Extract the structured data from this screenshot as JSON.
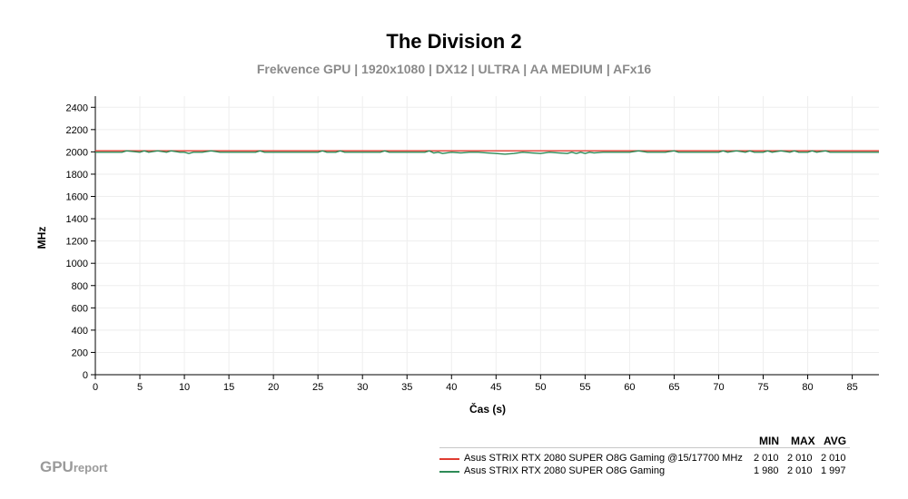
{
  "chart_data": {
    "type": "line",
    "title": "The Division 2",
    "subtitle": "Frekvence GPU | 1920x1080 | DX12 | ULTRA | AA MEDIUM | AFx16",
    "xlabel": "Čas (s)",
    "ylabel": "MHz",
    "xlim": [
      0,
      88
    ],
    "ylim": [
      0,
      2500
    ],
    "xticks": [
      0,
      5,
      10,
      15,
      20,
      25,
      30,
      35,
      40,
      45,
      50,
      55,
      60,
      65,
      70,
      75,
      80,
      85
    ],
    "yticks": [
      0,
      200,
      400,
      600,
      800,
      1000,
      1200,
      1400,
      1600,
      1800,
      2000,
      2200,
      2400
    ],
    "grid": true,
    "series": [
      {
        "name": "Asus STRIX RTX 2080 SUPER O8G Gaming @15/17700 MHz",
        "color": "#e03c31",
        "x": [
          0,
          88
        ],
        "y": [
          2010,
          2010
        ],
        "min": "2 010",
        "max": "2 010",
        "avg": "2 010"
      },
      {
        "name": "Asus STRIX RTX 2080 SUPER O8G Gaming",
        "color": "#2e8b57",
        "x": [
          0,
          3,
          3.5,
          5,
          5.5,
          6,
          7,
          8,
          8.5,
          9.5,
          10,
          10.5,
          11,
          12,
          13,
          14,
          18,
          18.5,
          19,
          20,
          25,
          25.5,
          26,
          27,
          27.5,
          28,
          32,
          32.5,
          33,
          37,
          37.5,
          38,
          38.5,
          39,
          40,
          41,
          42,
          43,
          44,
          45,
          46,
          47,
          48,
          49,
          50,
          51,
          52,
          53,
          53.5,
          54,
          54.5,
          55,
          55.5,
          56,
          57,
          58,
          59,
          60,
          61,
          62,
          63,
          64,
          65,
          65.5,
          66,
          70,
          70.5,
          71,
          72,
          73,
          73.5,
          74,
          75,
          75.5,
          76,
          77,
          78,
          78.5,
          79,
          80,
          80.5,
          81,
          82,
          82.5,
          83,
          88
        ],
        "y": [
          1997,
          1997,
          2010,
          1997,
          2010,
          1997,
          2010,
          1997,
          2010,
          1997,
          1997,
          1985,
          1997,
          1997,
          2010,
          1997,
          1997,
          2010,
          1997,
          1997,
          1997,
          2010,
          1997,
          1997,
          2010,
          1997,
          1997,
          2010,
          1997,
          1997,
          2010,
          1990,
          1997,
          1985,
          1997,
          1990,
          1997,
          1997,
          1990,
          1985,
          1980,
          1985,
          1997,
          1990,
          1985,
          1997,
          1990,
          1985,
          1997,
          1985,
          1997,
          1985,
          1997,
          1990,
          1997,
          1997,
          1997,
          1997,
          2010,
          1997,
          1997,
          1997,
          2010,
          1997,
          1997,
          1997,
          2010,
          1997,
          2010,
          1997,
          2010,
          1997,
          1997,
          2010,
          1997,
          2010,
          1997,
          2010,
          1997,
          1997,
          2010,
          1997,
          2010,
          1997,
          1997,
          1997
        ],
        "min": "1 980",
        "max": "2 010",
        "avg": "1 997"
      }
    ]
  },
  "legend": {
    "headers": {
      "min": "MIN",
      "max": "MAX",
      "avg": "AVG"
    }
  },
  "logo": {
    "main": "GPU",
    "small": "report"
  }
}
